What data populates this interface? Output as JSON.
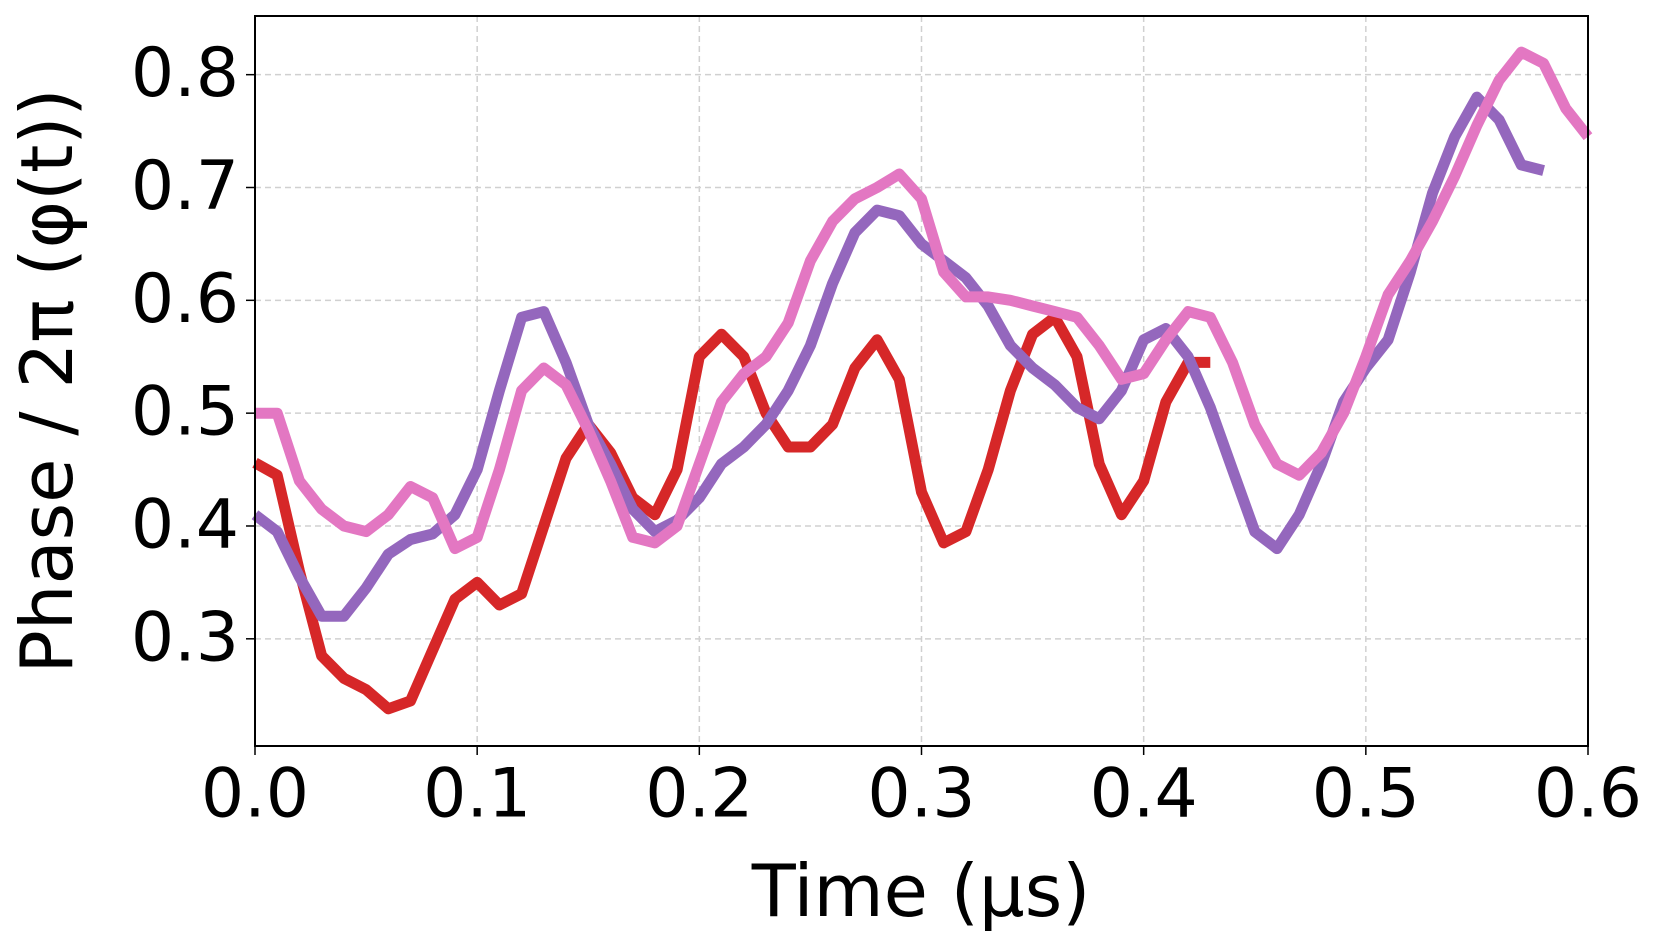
{
  "chart_data": {
    "type": "line",
    "xlabel": "Time (μs)",
    "ylabel": "Phase / 2π (φ(t))",
    "x": [
      0,
      0.01,
      0.02,
      0.03,
      0.04,
      0.05,
      0.06,
      0.07,
      0.08,
      0.09,
      0.1,
      0.11,
      0.12,
      0.13,
      0.14,
      0.15,
      0.16,
      0.17,
      0.18,
      0.19,
      0.2,
      0.21,
      0.22,
      0.23,
      0.24,
      0.25,
      0.26,
      0.27,
      0.28,
      0.29,
      0.3,
      0.31,
      0.32,
      0.33,
      0.34,
      0.35,
      0.36,
      0.37,
      0.38,
      0.39,
      0.4,
      0.41,
      0.42,
      0.43,
      0.44,
      0.45,
      0.46,
      0.47,
      0.48,
      0.49,
      0.5,
      0.51,
      0.52,
      0.53,
      0.54,
      0.55,
      0.56,
      0.57,
      0.58,
      0.59,
      0.6
    ],
    "series": [
      {
        "color": "#d62728",
        "values": [
          0.456,
          0.445,
          0.36,
          0.285,
          0.265,
          0.255,
          0.238,
          0.245,
          0.29,
          0.335,
          0.35,
          0.33,
          0.34,
          0.4,
          0.46,
          0.49,
          0.465,
          0.425,
          0.41,
          0.45,
          0.55,
          0.57,
          0.55,
          0.5,
          0.47,
          0.47,
          0.49,
          0.54,
          0.565,
          0.53,
          0.43,
          0.385,
          0.395,
          0.45,
          0.52,
          0.57,
          0.585,
          0.55,
          0.455,
          0.41,
          0.44,
          0.51,
          0.545,
          0.545,
          null,
          null,
          null,
          null,
          null,
          null,
          null,
          null,
          null,
          null,
          null,
          null,
          null,
          null,
          null,
          null,
          null
        ]
      },
      {
        "color": "#9467bd",
        "values": [
          0.41,
          0.395,
          0.355,
          0.32,
          0.32,
          0.345,
          0.375,
          0.388,
          0.393,
          0.41,
          0.45,
          0.52,
          0.585,
          0.59,
          0.545,
          0.49,
          0.455,
          0.415,
          0.395,
          0.405,
          0.425,
          0.455,
          0.47,
          0.49,
          0.52,
          0.56,
          0.615,
          0.66,
          0.68,
          0.675,
          0.65,
          0.635,
          0.62,
          0.595,
          0.56,
          0.54,
          0.525,
          0.505,
          0.495,
          0.52,
          0.565,
          0.575,
          0.55,
          0.505,
          0.45,
          0.395,
          0.38,
          0.41,
          0.455,
          0.51,
          0.54,
          0.565,
          0.625,
          0.695,
          0.745,
          0.78,
          0.76,
          0.72,
          0.715,
          null,
          null
        ]
      },
      {
        "color": "#e377c2",
        "values": [
          0.5,
          0.5,
          0.44,
          0.415,
          0.4,
          0.395,
          0.41,
          0.435,
          0.425,
          0.38,
          0.39,
          0.45,
          0.52,
          0.54,
          0.525,
          0.485,
          0.44,
          0.39,
          0.385,
          0.4,
          0.455,
          0.51,
          0.535,
          0.55,
          0.58,
          0.635,
          0.67,
          0.69,
          0.7,
          0.712,
          0.69,
          0.625,
          0.603,
          0.603,
          0.6,
          0.595,
          0.59,
          0.585,
          0.56,
          0.53,
          0.535,
          0.565,
          0.59,
          0.585,
          0.545,
          0.49,
          0.455,
          0.445,
          0.465,
          0.5,
          0.55,
          0.605,
          0.635,
          0.67,
          0.71,
          0.755,
          0.795,
          0.82,
          0.81,
          0.77,
          0.745
        ]
      }
    ],
    "xlim": [
      0,
      0.6
    ],
    "xticks": [
      {
        "value": 0,
        "label": "0.0"
      },
      0.1,
      0.2,
      0.3,
      0.4,
      0.5,
      0.6
    ],
    "ylim": [
      0.205,
      0.852
    ],
    "yticks": [
      0.3,
      0.4,
      0.5,
      0.6,
      0.7,
      0.8
    ],
    "grid": true
  }
}
